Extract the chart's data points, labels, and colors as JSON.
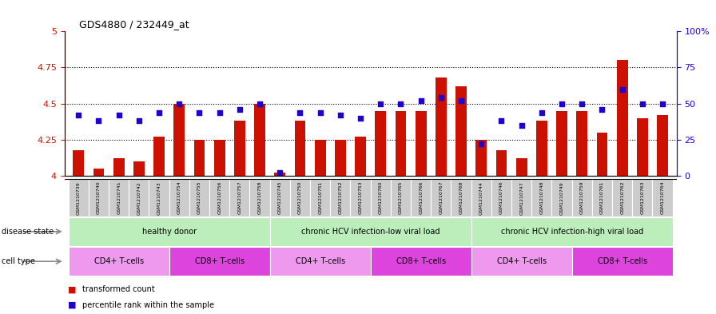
{
  "title": "GDS4880 / 232449_at",
  "samples": [
    "GSM1210739",
    "GSM1210740",
    "GSM1210741",
    "GSM1210742",
    "GSM1210743",
    "GSM1210754",
    "GSM1210755",
    "GSM1210756",
    "GSM1210757",
    "GSM1210758",
    "GSM1210745",
    "GSM1210750",
    "GSM1210751",
    "GSM1210752",
    "GSM1210753",
    "GSM1210760",
    "GSM1210765",
    "GSM1210766",
    "GSM1210767",
    "GSM1210768",
    "GSM1210744",
    "GSM1210746",
    "GSM1210747",
    "GSM1210748",
    "GSM1210749",
    "GSM1210759",
    "GSM1210761",
    "GSM1210762",
    "GSM1210763",
    "GSM1210764"
  ],
  "bar_values": [
    4.18,
    4.05,
    4.12,
    4.1,
    4.27,
    4.5,
    4.25,
    4.25,
    4.38,
    4.5,
    4.02,
    4.38,
    4.25,
    4.25,
    4.27,
    4.45,
    4.45,
    4.45,
    4.68,
    4.62,
    4.25,
    4.18,
    4.12,
    4.38,
    4.45,
    4.45,
    4.3,
    4.8,
    4.4,
    4.42
  ],
  "percentile_values": [
    42,
    38,
    42,
    38,
    44,
    50,
    44,
    44,
    46,
    50,
    2,
    44,
    44,
    42,
    40,
    50,
    50,
    52,
    54,
    52,
    22,
    38,
    35,
    44,
    50,
    50,
    46,
    60,
    50,
    50
  ],
  "bar_color": "#cc1100",
  "percentile_color": "#2200cc",
  "ylim_left": [
    4.0,
    5.0
  ],
  "ylim_right": [
    0,
    100
  ],
  "yticks_left": [
    4.0,
    4.25,
    4.5,
    4.75,
    5.0
  ],
  "ytick_labels_left": [
    "4",
    "4.25",
    "4.5",
    "4.75",
    "5"
  ],
  "yticks_right": [
    0,
    25,
    50,
    75,
    100
  ],
  "ytick_labels_right": [
    "0",
    "25",
    "50",
    "75",
    "100%"
  ],
  "hlines": [
    4.25,
    4.5,
    4.75
  ],
  "disease_groups": [
    {
      "label": "healthy donor",
      "start": 0,
      "end": 9
    },
    {
      "label": "chronic HCV infection-low viral load",
      "start": 10,
      "end": 19
    },
    {
      "label": "chronic HCV infection-high viral load",
      "start": 20,
      "end": 29
    }
  ],
  "disease_color_light": "#bbeebb",
  "disease_color_dark": "#88dd88",
  "cell_groups": [
    {
      "label": "CD4+ T-cells",
      "start": 0,
      "end": 4,
      "type": "CD4"
    },
    {
      "label": "CD8+ T-cells",
      "start": 5,
      "end": 9,
      "type": "CD8"
    },
    {
      "label": "CD4+ T-cells",
      "start": 10,
      "end": 14,
      "type": "CD4"
    },
    {
      "label": "CD8+ T-cells",
      "start": 15,
      "end": 19,
      "type": "CD8"
    },
    {
      "label": "CD4+ T-cells",
      "start": 20,
      "end": 24,
      "type": "CD4"
    },
    {
      "label": "CD8+ T-cells",
      "start": 25,
      "end": 29,
      "type": "CD8"
    }
  ],
  "cd4_color": "#ee99ee",
  "cd8_color": "#dd44dd",
  "disease_state_label": "disease state",
  "cell_type_label": "cell type",
  "legend_bar_label": "transformed count",
  "legend_pct_label": "percentile rank within the sample",
  "chart_bg": "#ffffff",
  "xtick_bg": "#cccccc",
  "bar_width": 0.55
}
